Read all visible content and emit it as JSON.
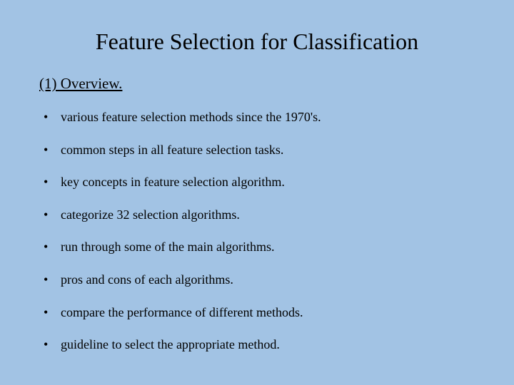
{
  "slide": {
    "title": "Feature Selection for Classification",
    "subtitle": "(1) Overview.",
    "bullets": [
      "various feature selection methods since the 1970's.",
      "common steps in all feature selection tasks.",
      "key concepts in feature selection algorithm.",
      "categorize 32 selection algorithms.",
      "run through some of the main algorithms.",
      "pros and cons of each algorithms.",
      "compare the performance of different methods.",
      "guideline to select the appropriate method."
    ],
    "colors": {
      "background": "#a2c3e4",
      "text": "#000000"
    },
    "typography": {
      "family": "Times New Roman",
      "title_fontsize": 32,
      "subtitle_fontsize": 21,
      "bullet_fontsize": 18
    }
  }
}
